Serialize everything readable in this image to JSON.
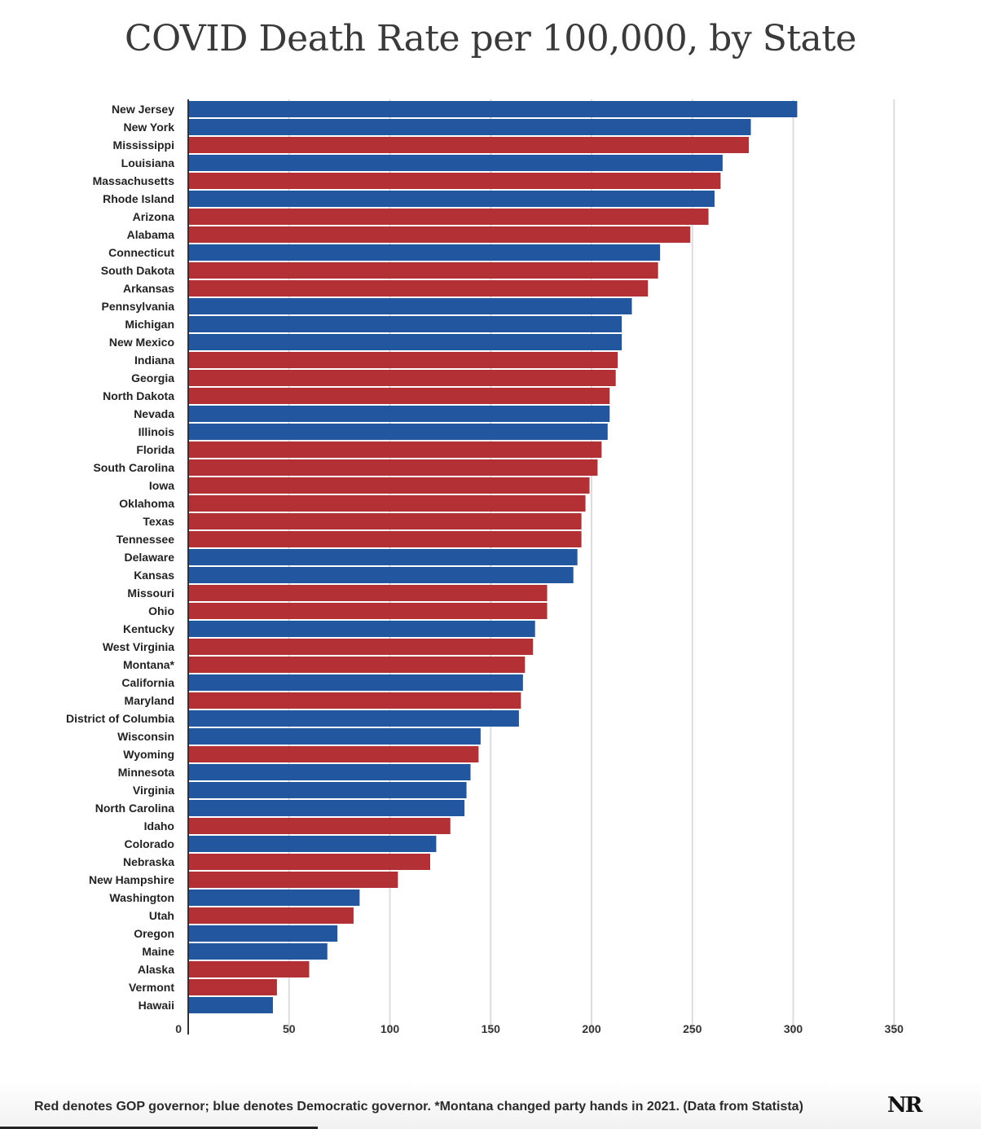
{
  "colors": {
    "gop": "#b33034",
    "dem": "#22569e",
    "grid": "#dddddd",
    "axis": "#333333",
    "label": "#222222"
  },
  "chart_data": {
    "type": "bar",
    "orientation": "horizontal",
    "title": "COVID Death Rate per 100,000, by State",
    "xlim": [
      0,
      350
    ],
    "ticks": [
      0,
      50,
      100,
      150,
      200,
      250,
      300,
      350
    ],
    "grid": true,
    "legend": "none",
    "series": [
      {
        "categories": [
          "New Jersey",
          "New York",
          "Mississippi",
          "Louisiana",
          "Massachusetts",
          "Rhode Island",
          "Arizona",
          "Alabama",
          "Connecticut",
          "South Dakota",
          "Arkansas",
          "Pennsylvania",
          "Michigan",
          "New Mexico",
          "Indiana",
          "Georgia",
          "North Dakota",
          "Nevada",
          "Illinois",
          "Florida",
          "South Carolina",
          "Iowa",
          "Oklahoma",
          "Texas",
          "Tennessee",
          "Delaware",
          "Kansas",
          "Missouri",
          "Ohio",
          "Kentucky",
          "West Virginia",
          "Montana*",
          "California",
          "Maryland",
          "District of Columbia",
          "Wisconsin",
          "Wyoming",
          "Minnesota",
          "Virginia",
          "North Carolina",
          "Idaho",
          "Colorado",
          "Nebraska",
          "New Hampshire",
          "Washington",
          "Utah",
          "Oregon",
          "Maine",
          "Alaska",
          "Vermont",
          "Hawaii"
        ],
        "values": [
          302,
          279,
          278,
          265,
          264,
          261,
          258,
          249,
          234,
          233,
          228,
          220,
          215,
          215,
          213,
          212,
          209,
          209,
          208,
          205,
          203,
          199,
          197,
          195,
          195,
          193,
          191,
          178,
          178,
          172,
          171,
          167,
          166,
          165,
          164,
          145,
          144,
          140,
          138,
          137,
          130,
          123,
          120,
          104,
          85,
          82,
          74,
          69,
          60,
          44,
          42
        ],
        "party": [
          "dem",
          "dem",
          "gop",
          "dem",
          "gop",
          "dem",
          "gop",
          "gop",
          "dem",
          "gop",
          "gop",
          "dem",
          "dem",
          "dem",
          "gop",
          "gop",
          "gop",
          "dem",
          "dem",
          "gop",
          "gop",
          "gop",
          "gop",
          "gop",
          "gop",
          "dem",
          "dem",
          "gop",
          "gop",
          "dem",
          "gop",
          "gop",
          "dem",
          "gop",
          "dem",
          "dem",
          "gop",
          "dem",
          "dem",
          "dem",
          "gop",
          "dem",
          "gop",
          "gop",
          "dem",
          "gop",
          "dem",
          "dem",
          "gop",
          "gop",
          "dem"
        ]
      }
    ]
  },
  "footer": {
    "note": "Red denotes GOP governor; blue denotes Democratic governor. *Montana changed party hands in 2021. (Data from Statista)",
    "logo": "NR"
  }
}
